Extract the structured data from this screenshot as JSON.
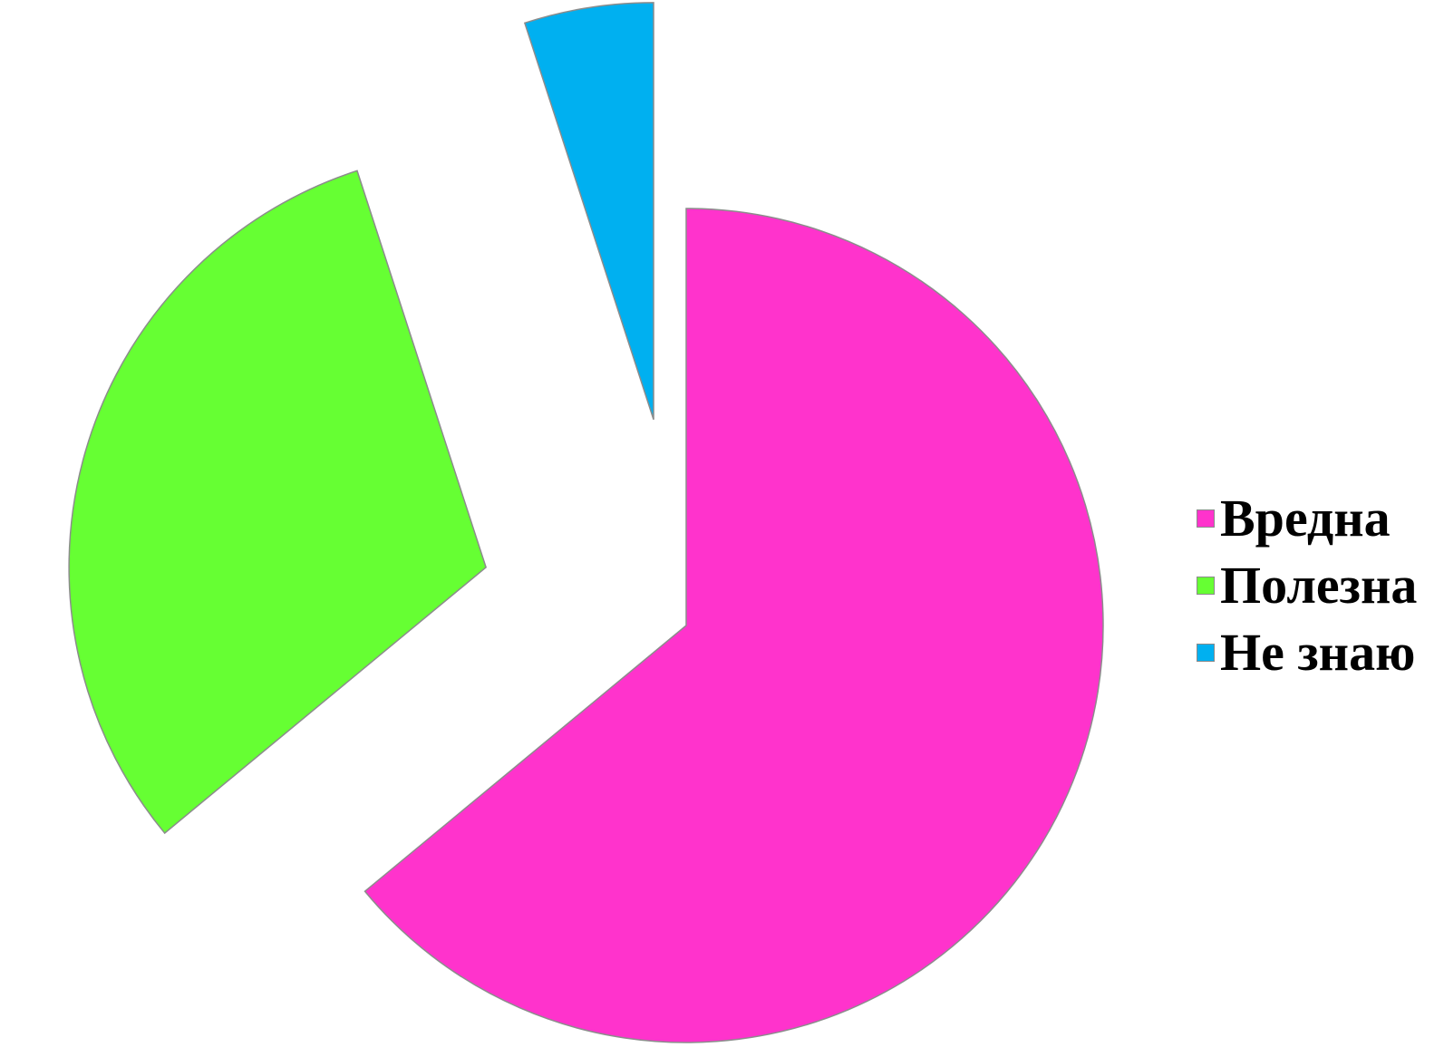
{
  "chart_data": {
    "type": "pie",
    "title": "",
    "slices": [
      {
        "label": "Вредна",
        "value": 64,
        "color": "#FF33CC",
        "exploded": false
      },
      {
        "label": "Полезна",
        "value": 31,
        "color": "#66FF33",
        "exploded": true
      },
      {
        "label": "Не знаю",
        "value": 5,
        "color": "#00B0F0",
        "exploded": true
      }
    ],
    "legend_position": "right",
    "start_angle": "12 o'clock",
    "direction": "clockwise"
  }
}
